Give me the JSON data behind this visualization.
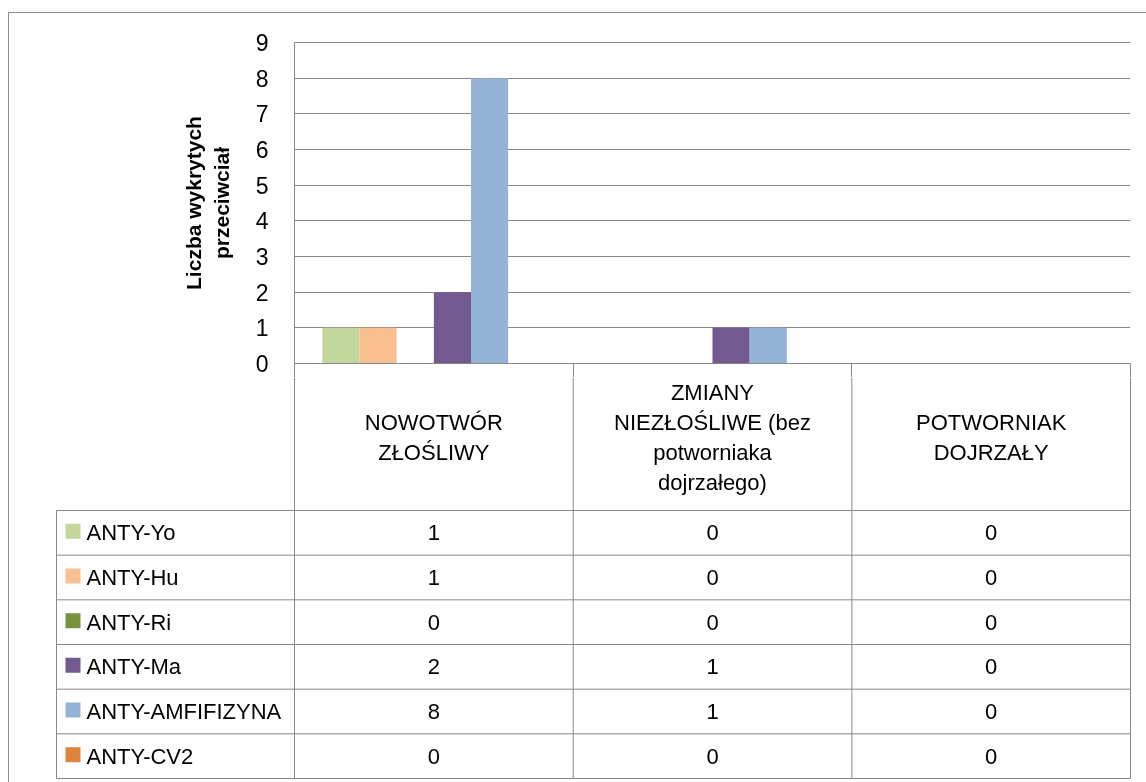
{
  "chart_data": {
    "type": "bar",
    "ylabel": "Liczba wykrytych przeciwciał",
    "categories": [
      "NOWOTWÓR ZŁOŚLIWY",
      "ZMIANY NIEZŁOŚLIWE (bez potworniaka dojrzałego)",
      "POTWORNIAK DOJRZAŁY"
    ],
    "series": [
      {
        "name": "ANTY-Yo",
        "color": "#c3d69b",
        "values": [
          1,
          0,
          0
        ]
      },
      {
        "name": "ANTY-Hu",
        "color": "#fac090",
        "values": [
          1,
          0,
          0
        ]
      },
      {
        "name": "ANTY-Ri",
        "color": "#77933c",
        "values": [
          0,
          0,
          0
        ]
      },
      {
        "name": "ANTY-Ma",
        "color": "#72598f",
        "values": [
          2,
          1,
          0
        ]
      },
      {
        "name": "ANTY-AMFIFIZYNA",
        "color": "#95b3d7",
        "values": [
          8,
          1,
          0
        ]
      },
      {
        "name": "ANTY-CV2",
        "color": "#e0843c",
        "values": [
          0,
          0,
          0
        ]
      }
    ],
    "ylim": [
      0,
      9
    ],
    "yticks": [
      0,
      1,
      2,
      3,
      4,
      5,
      6,
      7,
      8,
      9
    ],
    "grid": "y",
    "legend": "bottom",
    "data_labels": true
  }
}
